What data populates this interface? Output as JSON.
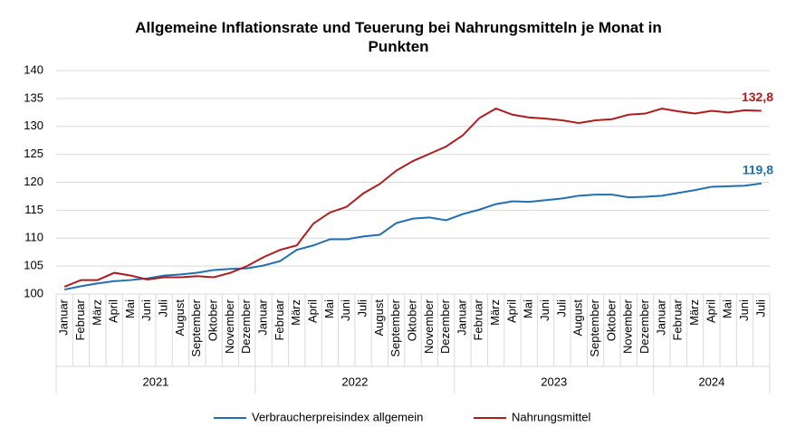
{
  "chart_data": {
    "type": "line",
    "title": "Allgemeine Inflationsrate und Teuerung bei Nahrungsmitteln je Monat in Punkten",
    "categories": [
      "Januar",
      "Februar",
      "März",
      "April",
      "Mai",
      "Juni",
      "Juli",
      "August",
      "September",
      "Oktober",
      "November",
      "Dezember",
      "Januar",
      "Februar",
      "März",
      "April",
      "Mai",
      "Juni",
      "Juli",
      "August",
      "September",
      "Oktober",
      "November",
      "Dezember",
      "Januar",
      "Februar",
      "März",
      "April",
      "Mai",
      "Juni",
      "Juli",
      "August",
      "September",
      "Oktober",
      "November",
      "Dezember",
      "Januar",
      "Februar",
      "März",
      "April",
      "Mai",
      "Juni",
      "Juli"
    ],
    "years": [
      "2021",
      "2022",
      "2023",
      "2024"
    ],
    "series": [
      {
        "name": "Verbraucherpreisindex allgemein",
        "color": "#1f6fb4",
        "values": [
          100.8,
          101.4,
          101.9,
          102.3,
          102.5,
          102.8,
          103.3,
          103.5,
          103.8,
          104.3,
          104.5,
          104.6,
          105.1,
          105.9,
          107.9,
          108.7,
          109.8,
          109.8,
          110.3,
          110.6,
          112.7,
          113.5,
          113.7,
          113.2,
          114.3,
          115.1,
          116.1,
          116.6,
          116.5,
          116.8,
          117.1,
          117.6,
          117.8,
          117.8,
          117.3,
          117.4,
          117.6,
          118.1,
          118.6,
          119.2,
          119.3,
          119.4,
          119.8
        ],
        "value_labels": [
          null,
          null,
          null,
          null,
          null,
          null,
          null,
          null,
          null,
          null,
          null,
          null,
          null,
          null,
          null,
          null,
          null,
          null,
          null,
          null,
          null,
          null,
          null,
          null,
          null,
          null,
          null,
          null,
          null,
          null,
          null,
          null,
          null,
          null,
          null,
          null,
          null,
          null,
          null,
          null,
          null,
          null,
          "119,8"
        ]
      },
      {
        "name": "Nahrungsmittel",
        "color": "#b01c1c",
        "values": [
          101.3,
          102.5,
          102.5,
          103.8,
          103.3,
          102.6,
          103.0,
          103.0,
          103.2,
          103.0,
          103.8,
          105.0,
          106.6,
          107.9,
          108.7,
          112.6,
          114.6,
          115.6,
          118.0,
          119.7,
          122.1,
          123.8,
          125.1,
          126.4,
          128.4,
          131.5,
          133.2,
          132.1,
          131.6,
          131.4,
          131.1,
          130.6,
          131.1,
          131.3,
          132.1,
          132.3,
          133.2,
          132.7,
          132.3,
          132.8,
          132.5,
          132.9,
          132.8
        ],
        "value_labels": [
          null,
          null,
          null,
          null,
          null,
          null,
          null,
          null,
          null,
          null,
          null,
          null,
          null,
          null,
          null,
          null,
          null,
          null,
          null,
          null,
          null,
          null,
          null,
          null,
          null,
          null,
          null,
          null,
          null,
          null,
          null,
          null,
          null,
          null,
          null,
          null,
          null,
          null,
          null,
          null,
          null,
          null,
          "132,8"
        ]
      }
    ],
    "ylim": [
      100,
      140
    ],
    "yticks": [
      100,
      105,
      110,
      115,
      120,
      125,
      130,
      135,
      140
    ],
    "grid": true,
    "legend": "bottom"
  }
}
